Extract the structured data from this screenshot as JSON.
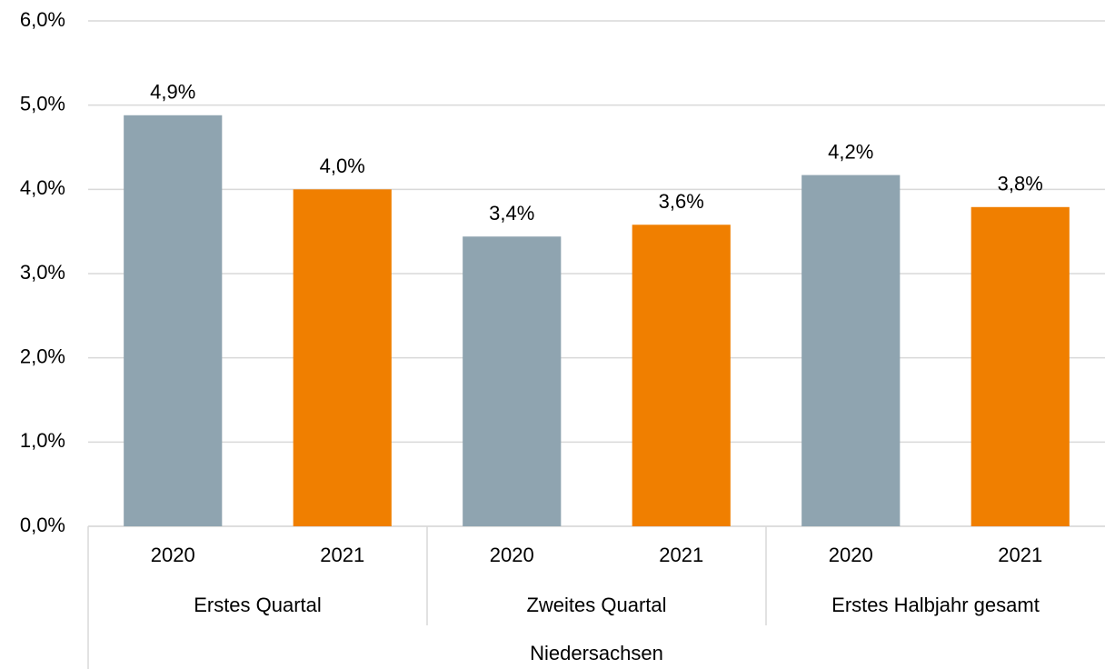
{
  "chart_data": {
    "type": "bar",
    "categories": [
      "2020",
      "2021",
      "2020",
      "2021",
      "2020",
      "2021"
    ],
    "groups": [
      "Erstes Quartal",
      "Zweites Quartal",
      "Erstes Halbjahr gesamt"
    ],
    "supergroup": "Niedersachsen",
    "values": [
      4.88,
      4.0,
      3.44,
      3.58,
      4.17,
      3.79
    ],
    "value_labels": [
      "4,9%",
      "4,0%",
      "3,4%",
      "3,6%",
      "4,2%",
      "3,8%"
    ],
    "colors": [
      "#8fa4b0",
      "#f07f00",
      "#8fa4b0",
      "#f07f00",
      "#8fa4b0",
      "#f07f00"
    ],
    "ylim": [
      0,
      6
    ],
    "yticks": [
      {
        "value": 0,
        "label": "0,0%"
      },
      {
        "value": 1,
        "label": "1,0%"
      },
      {
        "value": 2,
        "label": "2,0%"
      },
      {
        "value": 3,
        "label": "3,0%"
      },
      {
        "value": 4,
        "label": "4,0%"
      },
      {
        "value": 5,
        "label": "5,0%"
      },
      {
        "value": 6,
        "label": "6,0%"
      }
    ],
    "grid": true
  }
}
